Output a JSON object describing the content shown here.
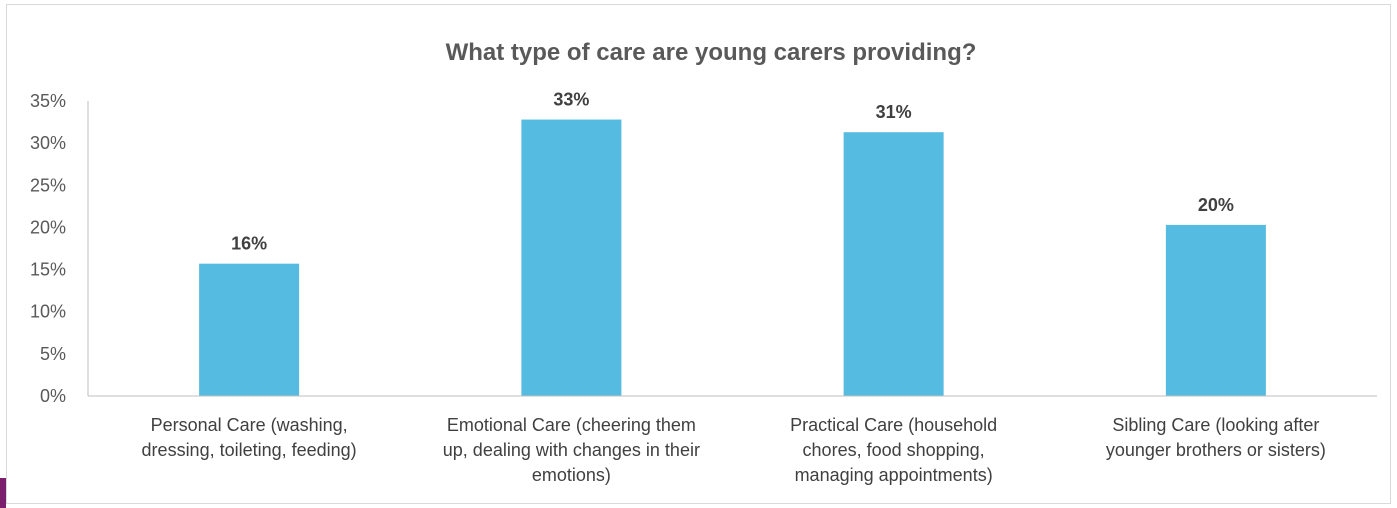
{
  "chart_data": {
    "type": "bar",
    "title": "What type of care are young carers providing?",
    "xlabel": "",
    "ylabel": "",
    "categories": [
      [
        "Personal Care (washing,",
        "dressing, toileting, feeding)"
      ],
      [
        "Emotional Care (cheering them",
        "up, dealing with changes in their",
        "emotions)"
      ],
      [
        "Practical Care (household",
        "chores, food shopping,",
        "managing appointments)"
      ],
      [
        "Sibling Care (looking after",
        "younger brothers or sisters)"
      ]
    ],
    "values": [
      15.7,
      32.8,
      31.3,
      20.3
    ],
    "data_labels": [
      "16%",
      "33%",
      "31%",
      "20%"
    ],
    "ylim": [
      0,
      35
    ],
    "yticks": [
      0,
      5,
      10,
      15,
      20,
      25,
      30,
      35
    ],
    "ytick_labels": [
      "0%",
      "5%",
      "10%",
      "15%",
      "20%",
      "25%",
      "30%",
      "35%"
    ],
    "grid": false,
    "legend": "none",
    "colors": {
      "bar": "#56bbe0",
      "axis": "#bfbfbf",
      "accent": "#7a1f6e"
    }
  }
}
